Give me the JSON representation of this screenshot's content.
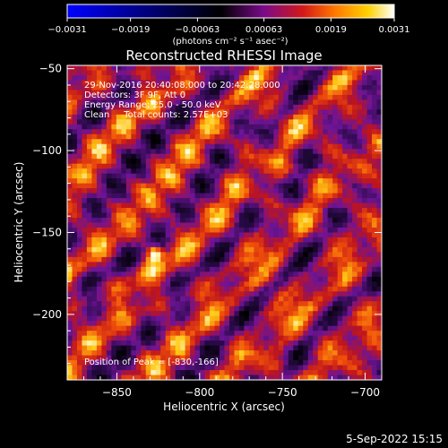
{
  "chart_data": {
    "type": "heatmap",
    "title": "Reconstructed RHESSI Image",
    "xlabel": "Heliocentric X (arcsec)",
    "ylabel": "Heliocentric Y (arcsec)",
    "xlim": [
      -880,
      -690
    ],
    "ylim": [
      -240,
      -48
    ],
    "x_ticks": [
      -850,
      -800,
      -750,
      -700
    ],
    "y_ticks": [
      -50,
      -100,
      -150,
      -200
    ],
    "x_tick_labels": [
      "−850",
      "−800",
      "−750",
      "−700"
    ],
    "y_tick_labels": [
      "−50",
      "−100",
      "−150",
      "−200"
    ],
    "colorbar": {
      "ticks": [
        -0.0031,
        -0.0019,
        -0.00063,
        0.00063,
        0.0019,
        0.0031
      ],
      "tick_labels": [
        "−0.0031",
        "−0.0019",
        "−0.00063",
        "0.00063",
        "0.0019",
        "0.0031"
      ],
      "range": [
        -0.0031,
        0.0031
      ],
      "unit_label": "(photons cm⁻² s⁻¹ asec⁻²)",
      "colors": [
        "#0000ff",
        "#000000",
        "#7a0a8a",
        "#d21818",
        "#ff7a00",
        "#ffd200",
        "#ffffff"
      ]
    },
    "annotations": [
      "29-Nov-2016 20:40:08.000 to 20:42:28.000",
      "Detectors: 3F 9F, Att 0",
      "Energy Range: 25.0 - 50.0 keV",
      "Clean     Total counts: 2.57E+03"
    ],
    "peak_label": "Position of Peak = [-830,-166]",
    "peak": [
      -830,
      -166
    ],
    "grid": false
  },
  "footer": {
    "timestamp": "5-Sep-2022 15:15"
  }
}
